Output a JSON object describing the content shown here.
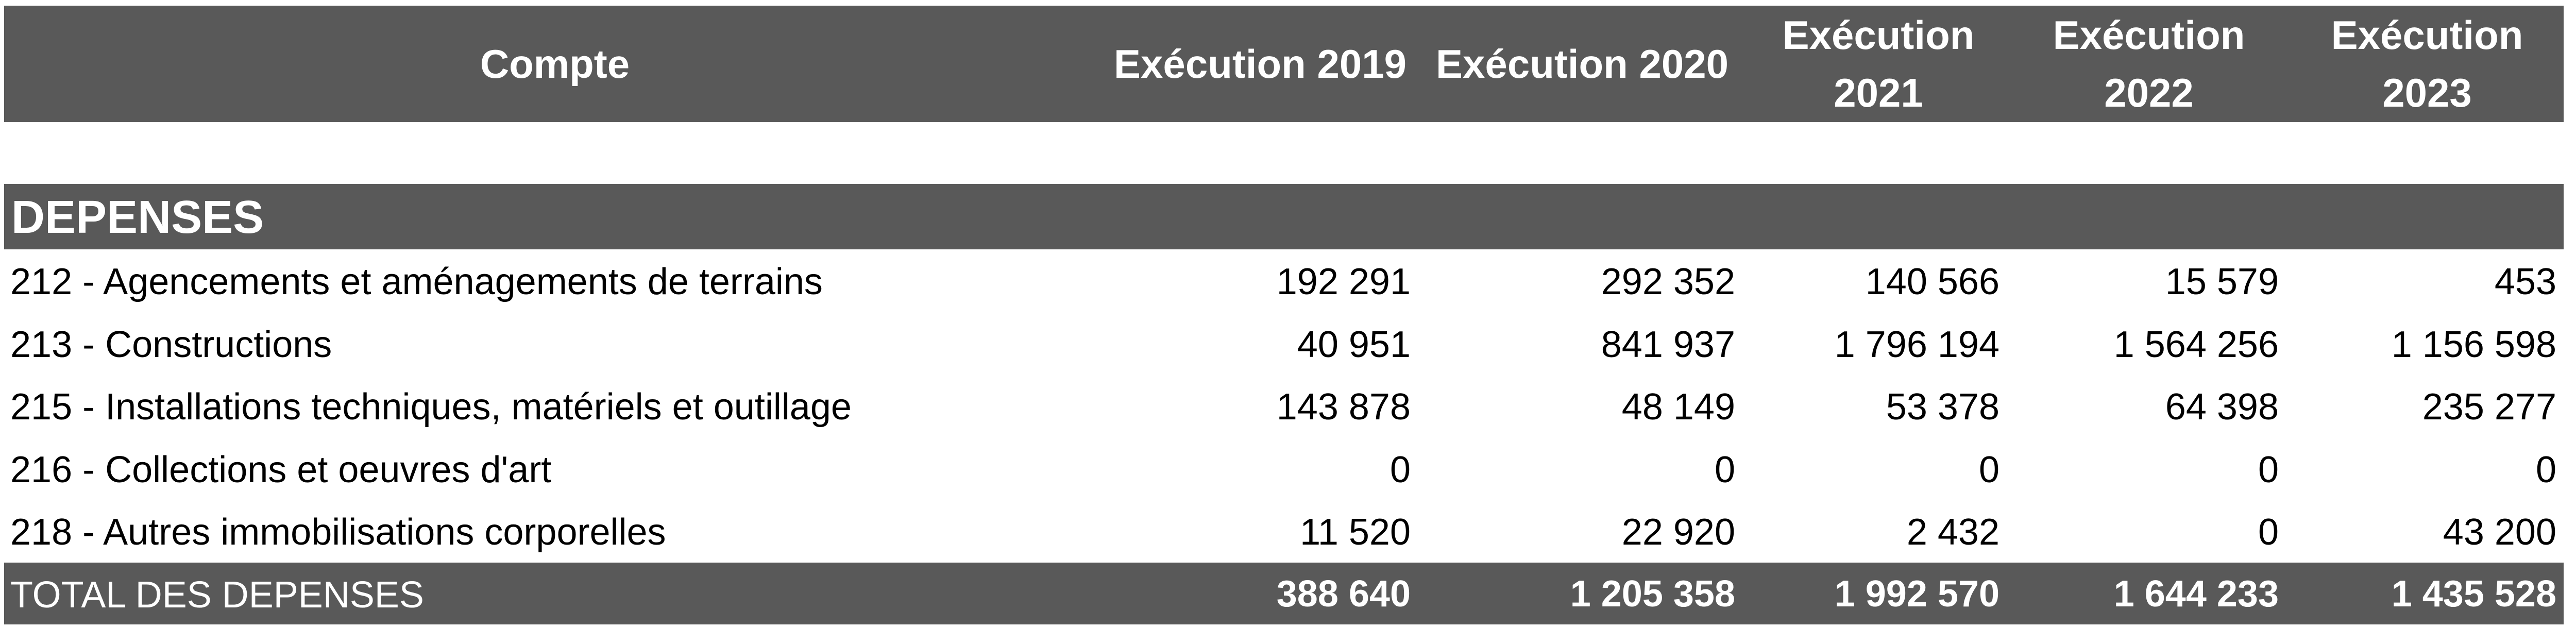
{
  "header": {
    "account": "Compte",
    "years": [
      "Exécution 2019",
      "Exécution 2020",
      "Exécution 2021",
      "Exécution 2022",
      "Exécution 2023"
    ]
  },
  "section": "DEPENSES",
  "rows": [
    {
      "label": "212 - Agencements et aménagements de terrains",
      "values": [
        "192 291",
        "292 352",
        "140 566",
        "15 579",
        "453"
      ]
    },
    {
      "label": "213 - Constructions",
      "values": [
        "40 951",
        "841 937",
        "1 796 194",
        "1 564 256",
        "1 156 598"
      ]
    },
    {
      "label": "215 - Installations techniques, matériels et outillage",
      "values": [
        "143 878",
        "48 149",
        "53 378",
        "64 398",
        "235 277"
      ]
    },
    {
      "label": "216 - Collections et oeuvres d'art",
      "values": [
        "0",
        "0",
        "0",
        "0",
        "0"
      ]
    },
    {
      "label": "218 - Autres immobilisations corporelles",
      "values": [
        "11 520",
        "22 920",
        "2 432",
        "0",
        "43 200"
      ]
    }
  ],
  "total": {
    "label": "TOTAL DES DEPENSES",
    "values": [
      "388 640",
      "1 205 358",
      "1 992 570",
      "1 644 233",
      "1 435 528"
    ]
  },
  "colors": {
    "bar": "#595959",
    "bar_text": "#ffffff"
  }
}
